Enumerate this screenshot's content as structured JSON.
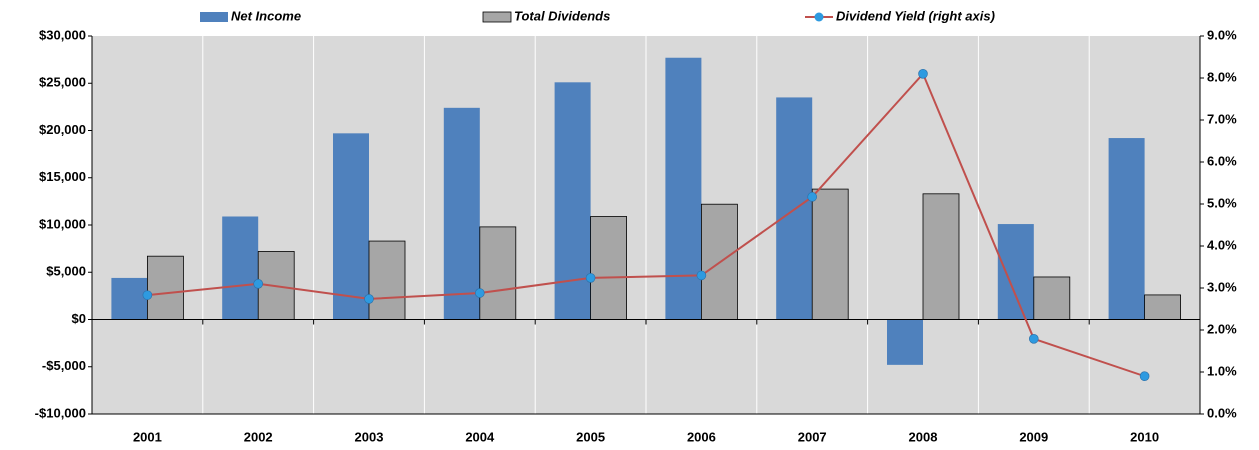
{
  "chart_data": {
    "type": "bar",
    "categories": [
      "2001",
      "2002",
      "2003",
      "2004",
      "2005",
      "2006",
      "2007",
      "2008",
      "2009",
      "2010"
    ],
    "series": [
      {
        "name": "Net Income",
        "color": "#4f81bd",
        "values": [
          4400,
          10900,
          19700,
          22400,
          25100,
          27700,
          23500,
          -4800,
          10100,
          19200
        ]
      },
      {
        "name": "Total Dividends",
        "color": "#a6a6a6",
        "values": [
          6700,
          7200,
          8300,
          9800,
          10900,
          12200,
          13800,
          13300,
          4500,
          2600
        ]
      },
      {
        "name": "Dividend Yield (right axis)",
        "type": "line",
        "axis": "y2",
        "color": "#c0504d",
        "marker_color": "#2e9ae0",
        "values": [
          2.83,
          3.1,
          2.74,
          2.88,
          3.24,
          3.3,
          5.17,
          8.1,
          1.79,
          0.9
        ]
      }
    ],
    "ylim": [
      -10000,
      30000
    ],
    "yticks": [
      {
        "value": -10000,
        "label": "-$10,000"
      },
      {
        "value": -5000,
        "label": "-$5,000"
      },
      {
        "value": 0,
        "label": "$0"
      },
      {
        "value": 5000,
        "label": "$5,000"
      },
      {
        "value": 10000,
        "label": "$10,000"
      },
      {
        "value": 15000,
        "label": "$15,000"
      },
      {
        "value": 20000,
        "label": "$20,000"
      },
      {
        "value": 25000,
        "label": "$25,000"
      },
      {
        "value": 30000,
        "label": "$30,000"
      }
    ],
    "y2lim": [
      0,
      9
    ],
    "y2ticks": [
      {
        "value": 0,
        "label": "0.0%"
      },
      {
        "value": 1,
        "label": "1.0%"
      },
      {
        "value": 2,
        "label": "2.0%"
      },
      {
        "value": 3,
        "label": "3.0%"
      },
      {
        "value": 4,
        "label": "4.0%"
      },
      {
        "value": 5,
        "label": "5.0%"
      },
      {
        "value": 6,
        "label": "6.0%"
      },
      {
        "value": 7,
        "label": "7.0%"
      },
      {
        "value": 8,
        "label": "8.0%"
      },
      {
        "value": 9,
        "label": "9.0%"
      }
    ],
    "legend": "top",
    "grid": true
  }
}
